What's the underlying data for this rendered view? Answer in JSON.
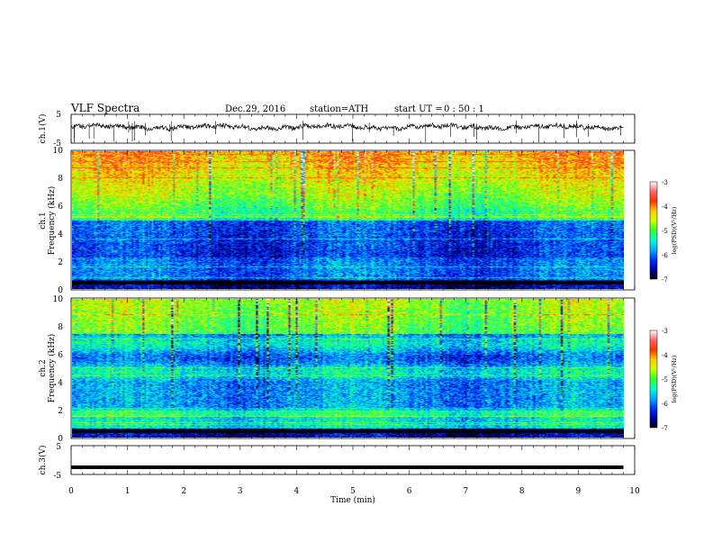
{
  "header": {
    "title": "VLF Spectra",
    "date": "Dec.29, 2016",
    "station": "station=ATH",
    "start_label": "start UT =",
    "start_time": "0 : 50 : 1"
  },
  "chart_data": [
    {
      "type": "line",
      "name": "ch1-waveform",
      "ylabel": "ch.1(V)",
      "ylim": [
        -5,
        5
      ],
      "yticks": [
        "5",
        "-5"
      ],
      "xlim": [
        0,
        10
      ],
      "data_extent_min": 9.8
    },
    {
      "type": "heatmap",
      "name": "ch1-spectrogram",
      "ylabel_lines": [
        "ch.1",
        "Frequency (kHz)"
      ],
      "ylim": [
        0,
        10
      ],
      "yticks": [
        "0",
        "2",
        "4",
        "6",
        "8",
        "10"
      ],
      "xlim": [
        0,
        10
      ],
      "colorbar": {
        "label": "log(PSD)(V²/Hz)",
        "range": [
          -7,
          -3
        ],
        "ticks": [
          "-3",
          "-4",
          "-5",
          "-6",
          "-7"
        ],
        "colormap": [
          "#000000",
          "#0000aa",
          "#0033ff",
          "#00aaff",
          "#00ffcc",
          "#33ff33",
          "#ccff00",
          "#ffcc00",
          "#ff3300",
          "#ff6666",
          "#ffffff"
        ]
      }
    },
    {
      "type": "heatmap",
      "name": "ch2-spectrogram",
      "ylabel_lines": [
        "ch.2",
        "Frequency (kHz)"
      ],
      "ylim": [
        0,
        10
      ],
      "yticks": [
        "0",
        "2",
        "4",
        "6",
        "8",
        "10"
      ],
      "xlim": [
        0,
        10
      ],
      "colorbar": {
        "label": "log(PSD)(V²/Hz)",
        "range": [
          -7,
          -3
        ],
        "ticks": [
          "-3",
          "-4",
          "-5",
          "-6",
          "-7"
        ],
        "colormap": [
          "#000000",
          "#0000aa",
          "#0033ff",
          "#00aaff",
          "#00ffcc",
          "#33ff33",
          "#ccff00",
          "#ffcc00",
          "#ff3300",
          "#ff6666",
          "#ffffff"
        ]
      }
    },
    {
      "type": "line",
      "name": "ch3-waveform",
      "ylabel": "ch.3(V)",
      "ylim": [
        -5,
        5
      ],
      "yticks": [
        "5",
        "-5"
      ],
      "xlim": [
        0,
        10
      ],
      "level": -2.5,
      "data_extent_min": 9.8
    }
  ],
  "xaxis": {
    "label": "Time (min)",
    "ticks": [
      "0",
      "1",
      "2",
      "3",
      "4",
      "5",
      "6",
      "7",
      "8",
      "9",
      "10"
    ]
  }
}
